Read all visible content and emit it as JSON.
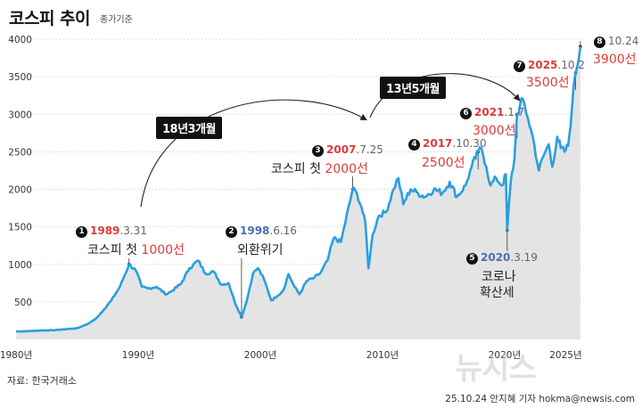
{
  "header": {
    "title": "코스피 추이",
    "subtitle": "종가기준"
  },
  "footer": {
    "source": "자료: 한국거래소",
    "credit": "25.10.24 안지혜 기자 hokma@newsis.com",
    "watermark": "뉴시스"
  },
  "colors": {
    "line": "#2a9fe0",
    "area": "#e4e4e4",
    "accent_red": "#e03a3a",
    "accent_blue": "#4a6fb5"
  },
  "annotations": [
    {
      "num": "1",
      "year": "1989",
      "md": ".3.31",
      "year_color": "red",
      "label": "코스피 첫 ",
      "value": "1000선"
    },
    {
      "num": "2",
      "year": "1998",
      "md": ".6.16",
      "year_color": "blue",
      "label": "외환위기",
      "value": ""
    },
    {
      "num": "3",
      "year": "2007",
      "md": ".7.25",
      "year_color": "red",
      "label": "코스피 첫 ",
      "value": "2000선"
    },
    {
      "num": "4",
      "year": "2017",
      "md": ".10.30",
      "year_color": "red",
      "label": "",
      "value": "2500선"
    },
    {
      "num": "5",
      "year": "2020",
      "md": ".3.19",
      "year_color": "blue",
      "label": "코로나",
      "label2": "확산세",
      "value": ""
    },
    {
      "num": "6",
      "year": "2021",
      "md": ".1.7",
      "year_color": "red",
      "label": "",
      "value": "3000선"
    },
    {
      "num": "7",
      "year": "2025",
      "md": ".10.2",
      "year_color": "red",
      "label": "",
      "value": "3500선"
    },
    {
      "num": "8",
      "year": "",
      "md": "10.24",
      "year_color": "red",
      "label": "",
      "value": "3900선"
    }
  ],
  "periods": [
    {
      "label": "18년3개월"
    },
    {
      "label": "13년5개월"
    }
  ],
  "chart_data": {
    "type": "area",
    "title": "코스피 추이",
    "subtitle": "종가기준",
    "xlabel": "",
    "ylabel": "",
    "xlim": [
      1980,
      2026.5
    ],
    "ylim": [
      0,
      4000
    ],
    "yticks": [
      500,
      1000,
      1500,
      2000,
      2500,
      3000,
      3500,
      4000
    ],
    "xticks": [
      1980,
      1990,
      2000,
      2010,
      2020,
      2025
    ],
    "xtick_labels": [
      "1980년",
      "1990년",
      "2000년",
      "2010년",
      "2020년",
      "2025년"
    ],
    "series": [
      {
        "name": "KOSPI",
        "x": [
          1980,
          1981,
          1982,
          1983,
          1984,
          1985,
          1985.8,
          1986.5,
          1987.2,
          1987.8,
          1988.5,
          1989.25,
          1989.8,
          1990.3,
          1990.8,
          1991.5,
          1992.3,
          1992.8,
          1993.5,
          1994.2,
          1994.9,
          1995.5,
          1996.2,
          1996.8,
          1997.4,
          1997.9,
          1998.46,
          1998.9,
          1999.4,
          1999.8,
          2000.3,
          2000.9,
          2001.4,
          2001.9,
          2002.3,
          2002.8,
          2003.2,
          2003.8,
          2004.4,
          2004.9,
          2005.5,
          2006.0,
          2006.6,
          2007.56,
          2007.9,
          2008.3,
          2008.6,
          2008.85,
          2009.2,
          2009.7,
          2010.3,
          2010.9,
          2011.3,
          2011.7,
          2012.3,
          2012.9,
          2013.5,
          2014.2,
          2014.9,
          2015.5,
          2016.1,
          2016.8,
          2017.3,
          2017.83,
          2018.1,
          2018.5,
          2018.85,
          2019.3,
          2019.8,
          2020.1,
          2020.21,
          2020.5,
          2020.8,
          2021.02,
          2021.5,
          2021.9,
          2022.3,
          2022.8,
          2023.2,
          2023.6,
          2023.9,
          2024.3,
          2024.6,
          2024.9,
          2025.2,
          2025.5,
          2025.75,
          2025.81,
          2026.2
        ],
        "values": [
          106,
          110,
          120,
          122,
          135,
          150,
          200,
          270,
          400,
          520,
          700,
          1000,
          920,
          700,
          680,
          700,
          600,
          650,
          740,
          950,
          1050,
          880,
          900,
          730,
          750,
          500,
          300,
          520,
          880,
          950,
          800,
          520,
          580,
          660,
          870,
          700,
          600,
          780,
          820,
          880,
          1050,
          1350,
          1300,
          2000,
          1950,
          1750,
          1550,
          950,
          1400,
          1650,
          1700,
          2000,
          2150,
          1800,
          2000,
          1950,
          1900,
          2000,
          1950,
          2100,
          1900,
          2050,
          2300,
          2500,
          2550,
          2300,
          2050,
          2150,
          2050,
          2200,
          1460,
          2100,
          2400,
          3000,
          3200,
          2950,
          2700,
          2250,
          2450,
          2600,
          2300,
          2700,
          2550,
          2500,
          2580,
          3050,
          3500,
          3550,
          3900
        ]
      }
    ],
    "annotations": [
      {
        "date": "1989.3.31",
        "text": "코스피 첫 1000선"
      },
      {
        "date": "1998.6.16",
        "text": "외환위기"
      },
      {
        "date": "2007.7.25",
        "text": "코스피 첫 2000선"
      },
      {
        "date": "2017.10.30",
        "text": "2500선"
      },
      {
        "date": "2020.3.19",
        "text": "코로나 확산세"
      },
      {
        "date": "2021.1.7",
        "text": "3000선"
      },
      {
        "date": "2025.10.2",
        "text": "3500선"
      },
      {
        "date": "10.24",
        "text": "3900선"
      }
    ],
    "period_labels": [
      "18년3개월",
      "13년5개월"
    ]
  }
}
